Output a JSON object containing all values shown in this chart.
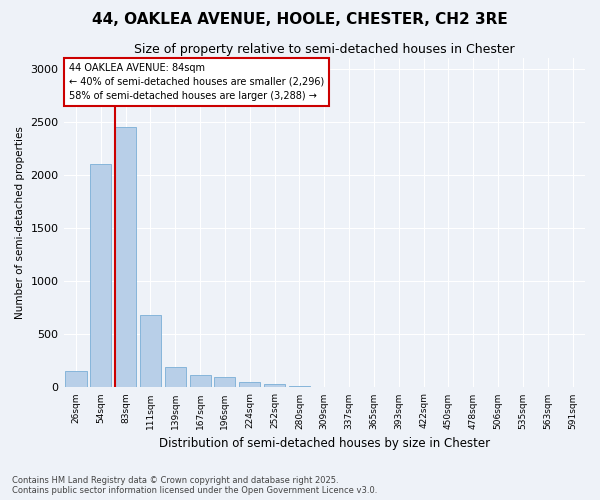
{
  "title1": "44, OAKLEA AVENUE, HOOLE, CHESTER, CH2 3RE",
  "title2": "Size of property relative to semi-detached houses in Chester",
  "xlabel": "Distribution of semi-detached houses by size in Chester",
  "ylabel": "Number of semi-detached properties",
  "categories": [
    "26sqm",
    "54sqm",
    "83sqm",
    "111sqm",
    "139sqm",
    "167sqm",
    "196sqm",
    "224sqm",
    "252sqm",
    "280sqm",
    "309sqm",
    "337sqm",
    "365sqm",
    "393sqm",
    "422sqm",
    "450sqm",
    "478sqm",
    "506sqm",
    "535sqm",
    "563sqm",
    "591sqm"
  ],
  "values": [
    155,
    2100,
    2450,
    680,
    190,
    120,
    95,
    48,
    28,
    12,
    5,
    2,
    1,
    1,
    0,
    0,
    0,
    0,
    0,
    0,
    0
  ],
  "bar_color": "#b8cfe8",
  "bar_edge_color": "#7aaed6",
  "annotation_title": "44 OAKLEA AVENUE: 84sqm",
  "annotation_line1": "← 40% of semi-detached houses are smaller (2,296)",
  "annotation_line2": "58% of semi-detached houses are larger (3,288) →",
  "annotation_box_color": "#cc0000",
  "red_line_x": 1.58,
  "ylim": [
    0,
    3100
  ],
  "yticks": [
    0,
    500,
    1000,
    1500,
    2000,
    2500,
    3000
  ],
  "background_color": "#eef2f8",
  "grid_color": "#ffffff",
  "footnote1": "Contains HM Land Registry data © Crown copyright and database right 2025.",
  "footnote2": "Contains public sector information licensed under the Open Government Licence v3.0."
}
